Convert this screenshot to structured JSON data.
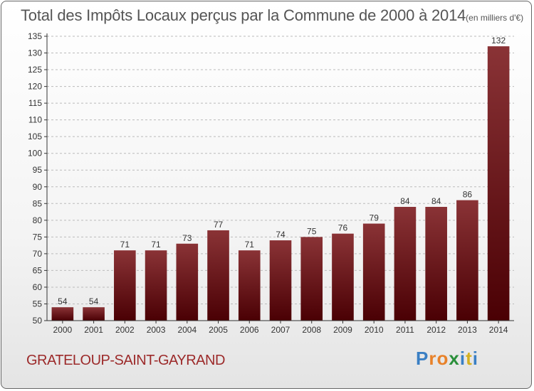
{
  "header": {
    "title": "Total des Impôts Locaux perçus par la Commune de 2000 à 2014",
    "unit": "(en milliers d'€)"
  },
  "footer": {
    "commune": "GRATELOUP-SAINT-GAYRAND",
    "logo_letters": [
      "P",
      "r",
      "o",
      "x",
      "i",
      "t",
      "i"
    ],
    "logo_colors": [
      "#3a7fc4",
      "#e8822a",
      "#e8822a",
      "#2a8f3a",
      "#3a7fc4",
      "#d4b020",
      "#3a7fc4"
    ]
  },
  "colors": {
    "bar_top": "#8a3336",
    "bar_bottom": "#4a0004",
    "axis": "#333333",
    "grid": "#bbbbbb",
    "text": "#333333"
  },
  "chart_data": {
    "type": "bar",
    "title": "Total des Impôts Locaux perçus par la Commune de 2000 à 2014",
    "xlabel": "",
    "ylabel": "",
    "categories": [
      "2000",
      "2001",
      "2002",
      "2003",
      "2004",
      "2005",
      "2006",
      "2007",
      "2008",
      "2009",
      "2010",
      "2011",
      "2012",
      "2013",
      "2014"
    ],
    "values": [
      54,
      54,
      71,
      71,
      73,
      77,
      71,
      74,
      75,
      76,
      79,
      84,
      84,
      86,
      132
    ],
    "ylim": [
      50,
      135
    ],
    "yticks": [
      50,
      55,
      60,
      65,
      70,
      75,
      80,
      85,
      90,
      95,
      100,
      105,
      110,
      115,
      120,
      125,
      130,
      135
    ],
    "grid": true
  }
}
